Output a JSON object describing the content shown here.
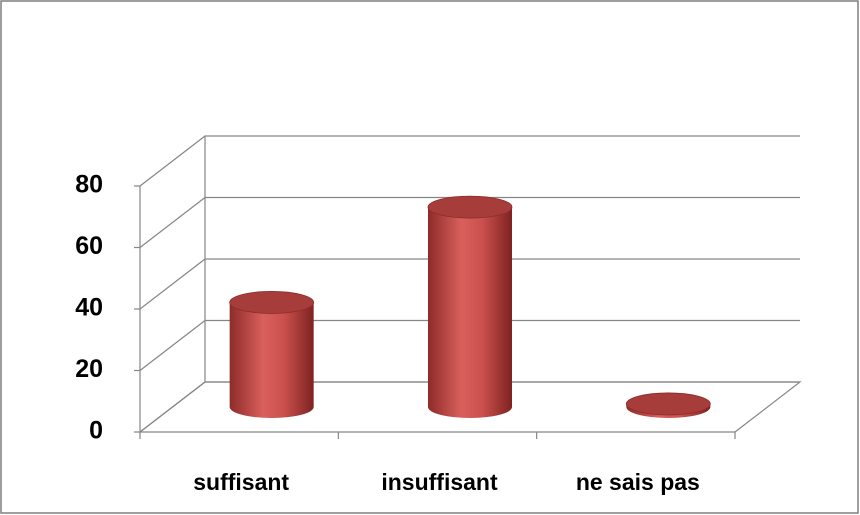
{
  "chart_data": {
    "type": "cylinder",
    "categories": [
      "suffisant",
      "insuffisant",
      "ne sais pas"
    ],
    "values": [
      34,
      65,
      1
    ],
    "color": "#c0504d",
    "ylim": [
      0,
      80
    ],
    "yticks": [
      0,
      20,
      40,
      60,
      80
    ],
    "grid": true
  }
}
